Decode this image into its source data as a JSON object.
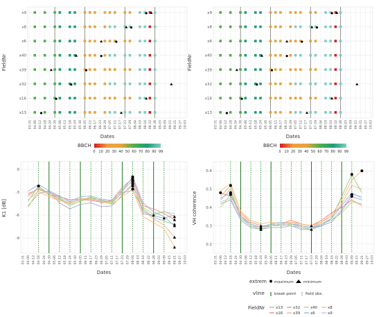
{
  "chart_data": [
    {
      "type": "scatter",
      "panel": "top-left",
      "xlabel": "Dates",
      "ylabel": "FieldNr",
      "y_categories": [
        "x13",
        "x16",
        "x32",
        "x39",
        "x40",
        "x6",
        "x8",
        "x9"
      ],
      "x_ticks": [
        "03-31",
        "04-06",
        "04-12",
        "04-18",
        "04-24",
        "04-30",
        "05-06",
        "05-12",
        "05-18",
        "05-24",
        "05-30",
        "06-05",
        "06-11",
        "06-17",
        "06-23",
        "06-29",
        "07-05",
        "07-11",
        "07-17",
        "07-23",
        "07-29",
        "08-04",
        "08-10",
        "08-16",
        "08-22",
        "08-28",
        "09-03",
        "09-09",
        "09-15",
        "09-21",
        "09-27",
        "10-03"
      ],
      "bbch_colorbar": {
        "title": "BBCH",
        "ticks": [
          "0",
          "10",
          "20",
          "30",
          "40",
          "50",
          "60",
          "70",
          "80",
          "90",
          "99"
        ]
      }
    },
    {
      "type": "scatter",
      "panel": "top-right",
      "xlabel": "Dates",
      "ylabel": "FieldNr",
      "y_categories": [
        "x13",
        "x16",
        "x32",
        "x39",
        "x40",
        "x6",
        "x8",
        "x9"
      ],
      "x_ticks": [
        "03-31",
        "04-06",
        "04-12",
        "04-18",
        "04-24",
        "04-30",
        "05-06",
        "05-12",
        "05-18",
        "05-24",
        "05-30",
        "06-05",
        "06-11",
        "06-17",
        "06-23",
        "06-29",
        "07-05",
        "07-11",
        "07-17",
        "07-23",
        "07-29",
        "08-04",
        "08-10",
        "08-16",
        "08-22",
        "08-28",
        "09-03",
        "09-09",
        "09-15",
        "09-21",
        "09-27",
        "10-03"
      ],
      "bbch_colorbar": {
        "title": "BBCH",
        "ticks": [
          "0",
          "10",
          "20",
          "30",
          "40",
          "50",
          "60",
          "70",
          "80",
          "90",
          "99"
        ]
      }
    },
    {
      "type": "line",
      "panel": "bottom-left",
      "xlabel": "Dates",
      "ylabel": "K1 [dB]",
      "y_ticks": [
        "0",
        "-3",
        "-6",
        "-9"
      ],
      "ylim": [
        -11,
        1
      ],
      "x_ticks": [
        "03-31",
        "04-06",
        "04-12",
        "04-18",
        "04-24",
        "04-30",
        "05-06",
        "05-12",
        "05-18",
        "05-24",
        "05-30",
        "06-05",
        "06-11",
        "06-17",
        "06-23",
        "06-29",
        "07-05",
        "07-11",
        "07-17",
        "07-23",
        "07-29",
        "08-04",
        "08-10",
        "08-16",
        "08-22",
        "08-28",
        "09-03",
        "09-09",
        "09-15",
        "09-21",
        "09-27",
        "10-03"
      ],
      "series": [
        {
          "name": "x13",
          "color": "#7fc97f",
          "values": [
            -4.2,
            -2.2,
            -3.3,
            -3.8,
            -4.6,
            -4.2,
            -3.8,
            -4.0,
            -4.5,
            -3.0,
            -2.8,
            -5.2,
            -6.3,
            -6.8,
            -7.2
          ]
        },
        {
          "name": "x16",
          "color": "#f8766d",
          "values": [
            -3.2,
            -2.6,
            -3.0,
            -3.6,
            -4.0,
            -3.9,
            -4.1,
            -4.3,
            -4.1,
            -2.4,
            -1.2,
            -4.8,
            -5.2,
            -5.8,
            -6.6
          ]
        },
        {
          "name": "x32",
          "color": "#9e9ac8",
          "values": [
            -4.8,
            -3.2,
            -2.8,
            -4.4,
            -5.2,
            -4.6,
            -4.4,
            -4.9,
            -4.8,
            -3.4,
            -1.9,
            -5.8,
            -6.1,
            -6.4,
            -6.0
          ]
        },
        {
          "name": "x39",
          "color": "#f4a582",
          "values": [
            -3.6,
            -2.5,
            -3.4,
            -4.0,
            -4.4,
            -4.0,
            -3.7,
            -4.4,
            -4.2,
            -3.2,
            -2.2,
            -5.4,
            -6.5,
            -7.3,
            -8.9
          ]
        },
        {
          "name": "x40",
          "color": "#a6d854",
          "values": [
            -5.0,
            -2.7,
            -3.0,
            -3.9,
            -4.8,
            -4.1,
            -3.6,
            -4.1,
            -4.4,
            -2.6,
            -1.6,
            -5.0,
            -5.9,
            -5.5,
            -6.2
          ]
        },
        {
          "name": "x6",
          "color": "#80b1d3",
          "values": [
            -2.9,
            -2.0,
            -2.8,
            -3.5,
            -4.2,
            -3.6,
            -3.5,
            -3.9,
            -4.1,
            -2.8,
            -1.0,
            -4.4,
            -5.6,
            -6.2,
            -7.4
          ]
        },
        {
          "name": "x8",
          "color": "#fdb462",
          "values": [
            -4.0,
            -2.9,
            -3.6,
            -4.1,
            -4.5,
            -3.8,
            -3.9,
            -4.2,
            -4.6,
            -3.6,
            -2.6,
            -6.2,
            -7.0,
            -7.8,
            -10.2
          ]
        },
        {
          "name": "x9",
          "color": "#bebada",
          "values": [
            -3.4,
            -2.4,
            -3.1,
            -3.7,
            -4.3,
            -3.9,
            -4.0,
            -4.1,
            -4.0,
            -2.9,
            -1.4,
            -5.6,
            -6.0,
            -5.6,
            -5.8
          ]
        }
      ],
      "series_x": [
        "04-06",
        "04-18",
        "04-30",
        "05-12",
        "05-24",
        "06-05",
        "06-17",
        "06-29",
        "07-11",
        "07-23",
        "08-04",
        "08-16",
        "08-28",
        "09-09",
        "09-21"
      ]
    },
    {
      "type": "line",
      "panel": "bottom-right",
      "xlabel": "Dates",
      "ylabel": "VH coherence",
      "y_ticks": [
        "0.2",
        "0.3",
        "0.4",
        "0.5",
        "0.6"
      ],
      "ylim": [
        0.15,
        0.65
      ],
      "x_ticks": [
        "03-31",
        "04-06",
        "04-12",
        "04-18",
        "04-24",
        "04-30",
        "05-06",
        "05-12",
        "05-18",
        "05-24",
        "05-30",
        "06-05",
        "06-11",
        "06-17",
        "06-23",
        "06-29",
        "07-05",
        "07-11",
        "07-17",
        "07-23",
        "07-29",
        "08-04",
        "08-10",
        "08-16",
        "08-22",
        "08-28",
        "09-03",
        "09-09",
        "09-15",
        "09-21",
        "09-27",
        "10-03"
      ],
      "series": [
        {
          "name": "x13",
          "color": "#7fc97f",
          "values": [
            0.44,
            0.5,
            0.34,
            0.3,
            0.29,
            0.31,
            0.3,
            0.31,
            0.29,
            0.28,
            0.31,
            0.34,
            0.46,
            0.58,
            0.48
          ]
        },
        {
          "name": "x16",
          "color": "#f8766d",
          "values": [
            0.48,
            0.46,
            0.37,
            0.32,
            0.3,
            0.3,
            0.31,
            0.33,
            0.31,
            0.3,
            0.33,
            0.37,
            0.4,
            0.44,
            0.41
          ]
        },
        {
          "name": "x32",
          "color": "#9e9ac8",
          "values": [
            0.42,
            0.44,
            0.33,
            0.29,
            0.28,
            0.29,
            0.29,
            0.3,
            0.28,
            0.28,
            0.3,
            0.32,
            0.38,
            0.46,
            0.44
          ]
        },
        {
          "name": "x39",
          "color": "#f4a582",
          "values": [
            0.46,
            0.52,
            0.36,
            0.31,
            0.29,
            0.3,
            0.31,
            0.32,
            0.3,
            0.29,
            0.32,
            0.35,
            0.42,
            0.52,
            0.5
          ]
        },
        {
          "name": "x40",
          "color": "#a6d854",
          "values": [
            0.4,
            0.47,
            0.35,
            0.3,
            0.28,
            0.3,
            0.3,
            0.31,
            0.3,
            0.29,
            0.31,
            0.33,
            0.37,
            0.43,
            0.42
          ]
        },
        {
          "name": "x6",
          "color": "#80b1d3",
          "values": [
            0.45,
            0.48,
            0.35,
            0.31,
            0.29,
            0.31,
            0.32,
            0.31,
            0.3,
            0.29,
            0.3,
            0.34,
            0.41,
            0.48,
            0.45
          ]
        },
        {
          "name": "x8",
          "color": "#fdb462",
          "values": [
            0.49,
            0.53,
            0.38,
            0.33,
            0.31,
            0.32,
            0.31,
            0.32,
            0.31,
            0.3,
            0.32,
            0.36,
            0.44,
            0.55,
            0.6
          ]
        },
        {
          "name": "x9",
          "color": "#bebada",
          "values": [
            0.43,
            0.45,
            0.34,
            0.3,
            0.29,
            0.3,
            0.31,
            0.3,
            0.29,
            0.29,
            0.31,
            0.33,
            0.39,
            0.47,
            0.46
          ]
        }
      ],
      "series_x": [
        "04-06",
        "04-18",
        "04-30",
        "05-12",
        "05-24",
        "06-05",
        "06-17",
        "06-29",
        "07-11",
        "07-23",
        "08-04",
        "08-16",
        "08-28",
        "09-09",
        "09-21"
      ]
    }
  ],
  "legends": {
    "extrem": {
      "title": "extrem",
      "items": [
        "maximum",
        "minimum"
      ]
    },
    "vline": {
      "title": "vline",
      "items": [
        "break point",
        "field obs."
      ]
    },
    "fieldnr": {
      "title": "FieldNr",
      "items": [
        "x13",
        "x16",
        "x32",
        "x39",
        "x40",
        "x6",
        "x8",
        "x9"
      ]
    }
  },
  "colors": {
    "bbch_gradient": [
      "#d7191c",
      "#fdae61",
      "#e8a33a",
      "#4daf4a",
      "#1b9e77",
      "#80cdc1",
      "#b2df8a"
    ],
    "break_point": "#1a7a1a",
    "field_obs": "#2e8b2e",
    "gray_vline": "#777777"
  }
}
